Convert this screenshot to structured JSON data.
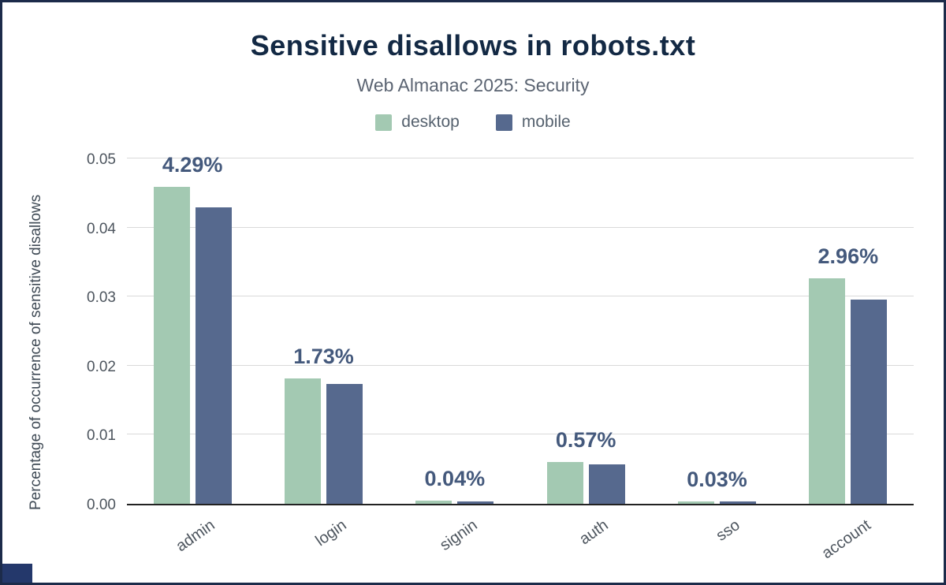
{
  "chart_data": {
    "type": "bar",
    "title": "Sensitive disallows in robots.txt",
    "subtitle": "Web Almanac 2025: Security",
    "ylabel": "Percentage of occurrence of sensitive disallows",
    "xlabel": "",
    "ylim": [
      0,
      0.05
    ],
    "yticks": [
      0,
      0.01,
      0.02,
      0.03,
      0.04,
      0.05
    ],
    "ytick_labels": [
      "0.00",
      "0.01",
      "0.02",
      "0.03",
      "0.04",
      "0.05"
    ],
    "grid": true,
    "legend_position": "top",
    "categories": [
      "admin",
      "login",
      "signin",
      "auth",
      "sso",
      "account"
    ],
    "series": [
      {
        "name": "desktop",
        "color": "#a3c9b2",
        "values": [
          0.0459,
          0.0181,
          0.0005,
          0.006,
          0.0003,
          0.0327
        ]
      },
      {
        "name": "mobile",
        "color": "#56698e",
        "values": [
          0.0429,
          0.0173,
          0.0004,
          0.0057,
          0.0003,
          0.0296
        ]
      }
    ],
    "annotations": [
      "4.29%",
      "1.73%",
      "0.04%",
      "0.57%",
      "0.03%",
      "2.96%"
    ]
  },
  "colors": {
    "title": "#132944",
    "subtitle": "#5b6472",
    "value_label": "#44597c",
    "gridline": "#d9d9d9",
    "axis_line": "#222222",
    "frame_border": "#1c2b4a",
    "corner_mark": "#24386b"
  }
}
